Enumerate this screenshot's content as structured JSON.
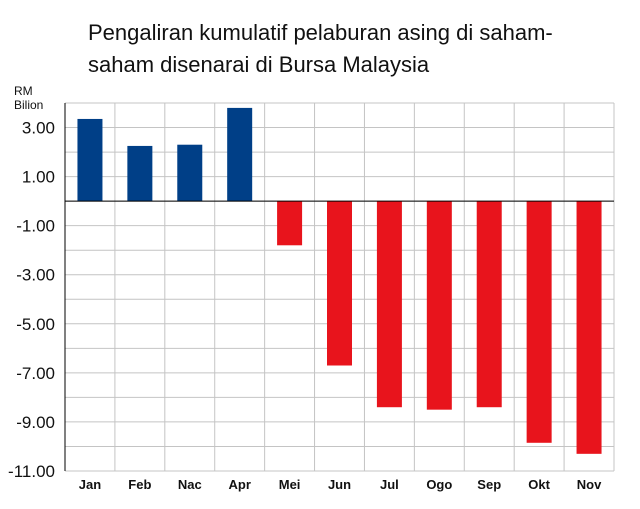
{
  "chart_data": {
    "type": "bar",
    "title_lines": [
      "Pengaliran kumulatif pelaburan asing di saham-",
      "saham disenarai di Bursa Malaysia"
    ],
    "ylabel_lines": [
      "RM",
      "Bilion"
    ],
    "xlabel": "",
    "categories": [
      "Jan",
      "Feb",
      "Nac",
      "Apr",
      "Mei",
      "Jun",
      "Jul",
      "Ogo",
      "Sep",
      "Okt",
      "Nov"
    ],
    "values": [
      3.35,
      2.25,
      2.3,
      3.8,
      -1.8,
      -6.7,
      -8.4,
      -8.5,
      -8.4,
      -9.85,
      -10.3
    ],
    "yticks": [
      "3.00",
      "1.00",
      "-1.00",
      "-3.00",
      "-5.00",
      "-7.00",
      "-9.00",
      "-11.00"
    ],
    "ylim": [
      -11,
      4
    ],
    "grid": true,
    "colors": {
      "positive": "#003f87",
      "negative": "#e8141c",
      "grid": "#c4c4c4",
      "axis": "#000000"
    }
  }
}
